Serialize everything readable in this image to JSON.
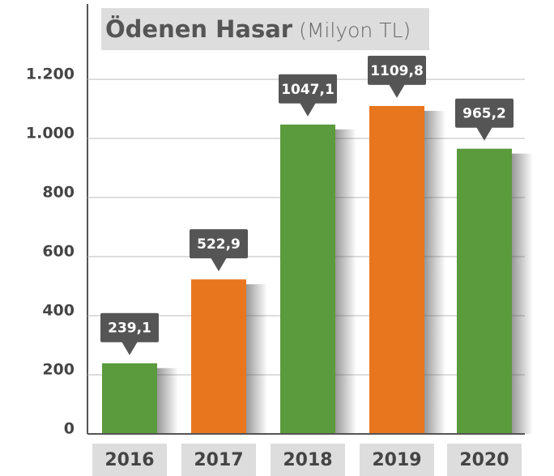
{
  "chart_data": {
    "type": "bar",
    "title": "Ödenen Hasar",
    "subtitle": "(Milyon TL)",
    "categories": [
      "2016",
      "2017",
      "2018",
      "2019",
      "2020"
    ],
    "values": [
      239.1,
      522.9,
      1047.1,
      1109.8,
      965.2
    ],
    "value_labels": [
      "239,1",
      "522,9",
      "1047,1",
      "1109,8",
      "965,2"
    ],
    "colors": [
      "#5b9a3d",
      "#e8761f",
      "#5b9a3d",
      "#e8761f",
      "#5b9a3d"
    ],
    "ylim": [
      0,
      1200
    ],
    "yticks": [
      0,
      200,
      400,
      600,
      800,
      {
        "value": 1000,
        "label": "1.000"
      },
      {
        "value": 1200,
        "label": "1.200"
      }
    ],
    "grid": true
  }
}
